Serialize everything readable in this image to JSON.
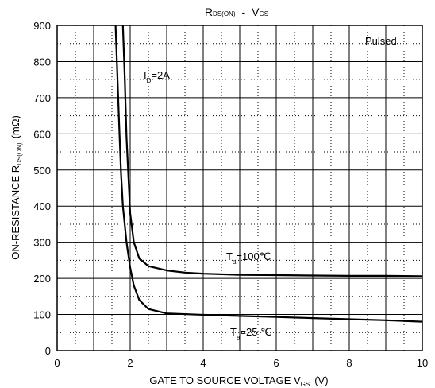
{
  "chart_data": {
    "type": "line",
    "title": {
      "main": "R",
      "main_sub": "DS(ON)",
      "separator": "-",
      "second": "V",
      "second_sub": "GS"
    },
    "xlabel": {
      "text": "GATE TO SOURCE VOLTAGE  V",
      "sub": "GS",
      "unit": "(V)"
    },
    "ylabel": {
      "text": "ON-RESISTANCE R",
      "sub": "DS(ON)",
      "unit": "(mΩ)"
    },
    "xlim": [
      0,
      10
    ],
    "ylim": [
      0,
      900
    ],
    "x_ticks": [
      "0",
      "2",
      "4",
      "6",
      "8",
      "10"
    ],
    "y_ticks": [
      "0",
      "100",
      "200",
      "300",
      "400",
      "500",
      "600",
      "700",
      "800",
      "900"
    ],
    "grid": true,
    "annotations": {
      "pulsed": "Pulsed",
      "id_main": "I",
      "id_sub": "D",
      "id_value": "=2A",
      "ta100_main": "T",
      "ta100_sub": "a",
      "ta100_value": "=100℃",
      "ta25_main": "T",
      "ta25_sub": "a",
      "ta25_value": "=25 ℃"
    },
    "series": [
      {
        "name": "Ta=100℃",
        "x": [
          1.8,
          1.85,
          1.9,
          2.0,
          2.1,
          2.25,
          2.5,
          3.0,
          3.5,
          4,
          5,
          6,
          7,
          8,
          9,
          10
        ],
        "y": [
          900,
          760,
          590,
          380,
          300,
          255,
          234,
          222,
          216,
          213,
          210,
          209,
          208,
          207,
          207,
          206
        ]
      },
      {
        "name": "Ta=25℃",
        "x": [
          1.6,
          1.65,
          1.7,
          1.75,
          1.8,
          1.9,
          2.0,
          2.1,
          2.25,
          2.5,
          3.0,
          4,
          5,
          6,
          7,
          8,
          9,
          10
        ],
        "y": [
          900,
          760,
          620,
          490,
          400,
          300,
          230,
          180,
          140,
          115,
          103,
          99,
          96,
          93,
          90,
          87,
          84,
          80
        ]
      }
    ]
  }
}
